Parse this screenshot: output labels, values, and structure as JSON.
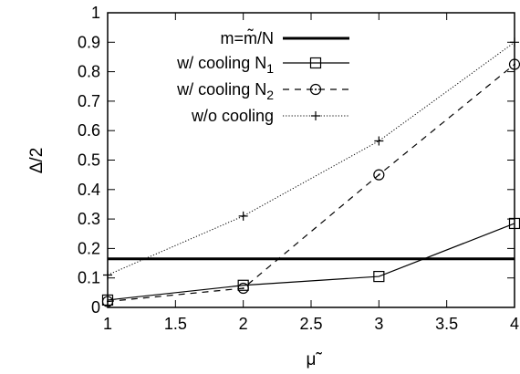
{
  "chart_data": {
    "type": "line",
    "xlabel": "μ̃",
    "ylabel": "Δ/2",
    "xlim": [
      1,
      4
    ],
    "ylim": [
      0,
      1
    ],
    "xticks": [
      "1",
      "1.5",
      "2",
      "2.5",
      "3",
      "3.5",
      "4"
    ],
    "yticks": [
      "0",
      "0.1",
      "0.2",
      "0.3",
      "0.4",
      "0.5",
      "0.6",
      "0.7",
      "0.8",
      "0.9",
      "1"
    ],
    "grid": false,
    "legend_position": "top-left",
    "series": [
      {
        "name": "m=m̃/N",
        "kind": "hline",
        "y": 0.165,
        "style": "solid-thick",
        "color": "#000000"
      },
      {
        "name": "w/ cooling N",
        "name_subscript": "1",
        "x": [
          1,
          2,
          3,
          4
        ],
        "y": [
          0.025,
          0.075,
          0.105,
          0.285
        ],
        "marker": "square",
        "style": "solid",
        "color": "#000000"
      },
      {
        "name": "w/ cooling N",
        "name_subscript": "2",
        "x": [
          1,
          2,
          3,
          4
        ],
        "y": [
          0.02,
          0.065,
          0.45,
          0.825
        ],
        "marker": "circle",
        "style": "dashed",
        "color": "#000000"
      },
      {
        "name": "w/o cooling",
        "x": [
          1,
          2,
          3,
          4
        ],
        "y": [
          0.11,
          0.31,
          0.565,
          0.9
        ],
        "marker": "plus",
        "style": "dotted",
        "color": "#000000"
      }
    ]
  }
}
